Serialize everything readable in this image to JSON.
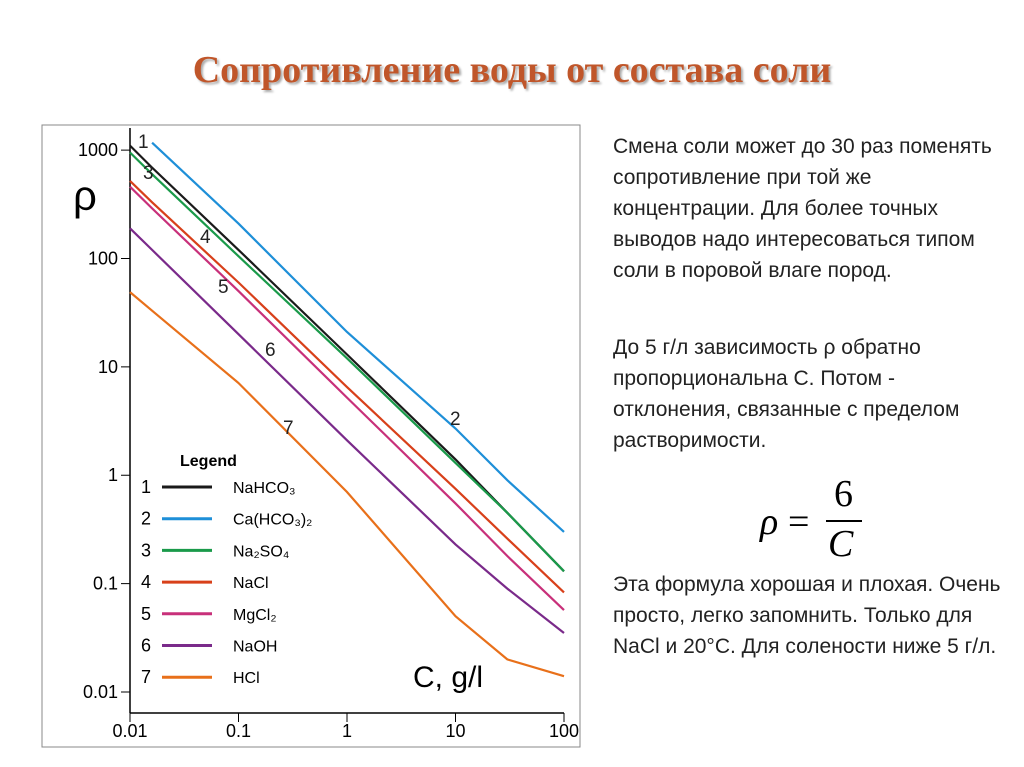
{
  "title": "Сопротивление воды от состава соли",
  "paragraphs": [
    "Смена соли может до 30 раз поменять сопротивление при той же концентрации. Для более точных выводов надо интересоваться типом соли в поровой влаге пород.",
    "До 5 г/л зависимость ρ обратно пропорциональна C. Потом - отклонения, связанные с пределом растворимости.",
    "Эта формула хорошая и плохая. Очень просто, легко запомнить. Только для NaCl и 20°С. Для солености ниже 5 г/л."
  ],
  "formula": {
    "lhs": "ρ",
    "operator": "=",
    "numerator": "6",
    "denominator": "C"
  },
  "chart_data": {
    "type": "line",
    "x_label": "C, g/l",
    "y_label": "ρ",
    "legend_title": "Legend",
    "log_x": true,
    "log_y": true,
    "x": [
      0.01,
      0.016,
      0.1,
      1,
      10,
      30,
      100
    ],
    "xlim": [
      0.01,
      100
    ],
    "ylim": [
      0.0064,
      1600
    ],
    "xticks": [
      0.01,
      0.1,
      1,
      10,
      100
    ],
    "yticks": [
      0.01,
      0.1,
      1,
      10,
      100,
      1000
    ],
    "series": [
      {
        "label": "1",
        "name": "NaHCO₃",
        "color": "#1a1a1a",
        "values": [
          1100,
          690,
          120,
          13,
          1.4,
          0.45,
          0.13
        ]
      },
      {
        "label": "2",
        "name": "Ca(HCO₃)₂",
        "color": "#1e8fd8",
        "values": [
          null,
          1170,
          210,
          21,
          2.7,
          0.9,
          0.3
        ]
      },
      {
        "label": "3",
        "name": "Na₂SO₄",
        "color": "#1a9a4a",
        "values": [
          950,
          600,
          105,
          12,
          1.3,
          0.45,
          0.13
        ]
      },
      {
        "label": "4",
        "name": "NaCl",
        "color": "#d8401a",
        "values": [
          520,
          330,
          60,
          6.5,
          0.75,
          0.26,
          0.083
        ]
      },
      {
        "label": "5",
        "name": "MgCl₂",
        "color": "#c8307a",
        "values": [
          460,
          290,
          50,
          5.2,
          0.55,
          0.18,
          0.057
        ]
      },
      {
        "label": "6",
        "name": "NaOH",
        "color": "#7a2a8a",
        "values": [
          190,
          120,
          20,
          2.1,
          0.23,
          0.09,
          0.035
        ]
      },
      {
        "label": "7",
        "name": "HCl",
        "color": "#e8701a",
        "values": [
          49,
          33,
          7.1,
          0.7,
          0.05,
          0.02,
          0.014
        ]
      }
    ]
  }
}
